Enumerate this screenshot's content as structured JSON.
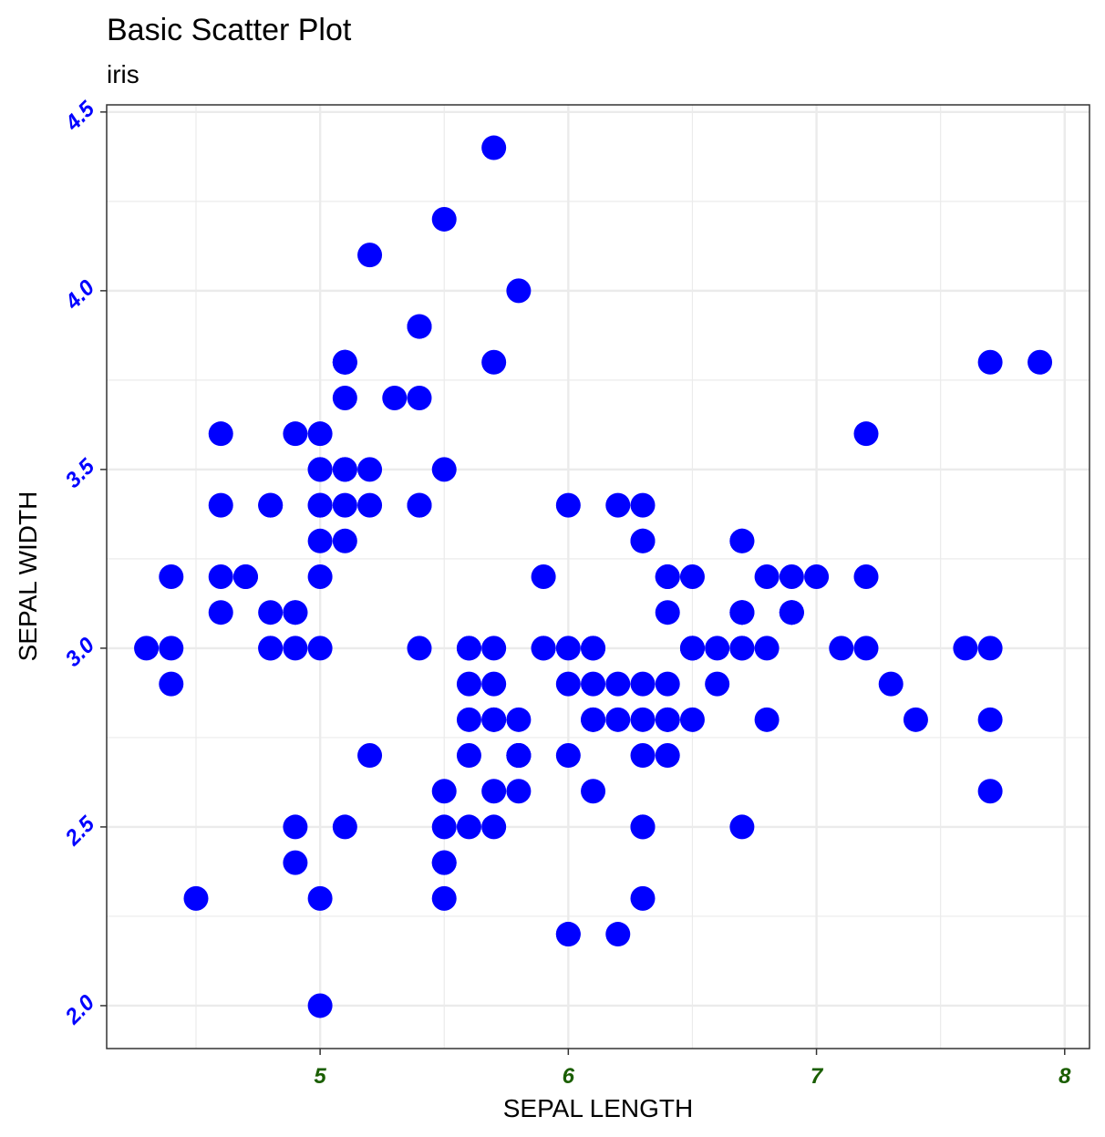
{
  "chart_data": {
    "type": "scatter",
    "title": "Basic Scatter Plot",
    "subtitle": "iris",
    "xlabel": "SEPAL LENGTH",
    "ylabel": "SEPAL WIDTH",
    "xlim": [
      4.14,
      8.1
    ],
    "ylim": [
      1.88,
      4.52
    ],
    "x_ticks": [
      5,
      6,
      7,
      8
    ],
    "x_tick_labels": [
      "5",
      "6",
      "7",
      "8"
    ],
    "y_ticks": [
      2.0,
      2.5,
      3.0,
      3.5,
      4.0,
      4.5
    ],
    "y_tick_labels": [
      "2.0",
      "2.5",
      "3.0",
      "3.5",
      "4.0",
      "4.5"
    ],
    "grid": true,
    "colors": {
      "points": "#0000ff",
      "x_tick_text": "#1a5e00",
      "y_tick_text": "#0000ff",
      "grid": "#ebebeb",
      "panel_border": "#333333"
    },
    "points": [
      [
        5.1,
        3.5
      ],
      [
        4.9,
        3.0
      ],
      [
        4.7,
        3.2
      ],
      [
        4.6,
        3.1
      ],
      [
        5.0,
        3.6
      ],
      [
        5.4,
        3.9
      ],
      [
        4.6,
        3.4
      ],
      [
        5.0,
        3.4
      ],
      [
        4.4,
        2.9
      ],
      [
        4.9,
        3.1
      ],
      [
        5.4,
        3.7
      ],
      [
        4.8,
        3.4
      ],
      [
        4.8,
        3.0
      ],
      [
        4.3,
        3.0
      ],
      [
        5.8,
        4.0
      ],
      [
        5.7,
        4.4
      ],
      [
        5.4,
        3.9
      ],
      [
        5.1,
        3.5
      ],
      [
        5.7,
        3.8
      ],
      [
        5.1,
        3.8
      ],
      [
        5.4,
        3.4
      ],
      [
        5.1,
        3.7
      ],
      [
        4.6,
        3.6
      ],
      [
        5.1,
        3.3
      ],
      [
        4.8,
        3.4
      ],
      [
        5.0,
        3.0
      ],
      [
        5.0,
        3.4
      ],
      [
        5.2,
        3.5
      ],
      [
        5.2,
        3.4
      ],
      [
        4.7,
        3.2
      ],
      [
        4.8,
        3.1
      ],
      [
        5.4,
        3.4
      ],
      [
        5.2,
        4.1
      ],
      [
        5.5,
        4.2
      ],
      [
        4.9,
        3.1
      ],
      [
        5.0,
        3.2
      ],
      [
        5.5,
        3.5
      ],
      [
        4.9,
        3.6
      ],
      [
        4.4,
        3.0
      ],
      [
        5.1,
        3.4
      ],
      [
        5.0,
        3.5
      ],
      [
        4.5,
        2.3
      ],
      [
        4.4,
        3.2
      ],
      [
        5.0,
        3.5
      ],
      [
        5.1,
        3.8
      ],
      [
        4.8,
        3.0
      ],
      [
        5.1,
        3.8
      ],
      [
        4.6,
        3.2
      ],
      [
        5.3,
        3.7
      ],
      [
        5.0,
        3.3
      ],
      [
        7.0,
        3.2
      ],
      [
        6.4,
        3.2
      ],
      [
        6.9,
        3.1
      ],
      [
        5.5,
        2.3
      ],
      [
        6.5,
        2.8
      ],
      [
        5.7,
        2.8
      ],
      [
        6.3,
        3.3
      ],
      [
        4.9,
        2.4
      ],
      [
        6.6,
        2.9
      ],
      [
        5.2,
        2.7
      ],
      [
        5.0,
        2.0
      ],
      [
        5.9,
        3.0
      ],
      [
        6.0,
        2.2
      ],
      [
        6.1,
        2.9
      ],
      [
        5.6,
        2.9
      ],
      [
        6.7,
        3.1
      ],
      [
        5.6,
        3.0
      ],
      [
        5.8,
        2.7
      ],
      [
        6.2,
        2.2
      ],
      [
        5.6,
        2.5
      ],
      [
        5.9,
        3.2
      ],
      [
        6.1,
        2.8
      ],
      [
        6.3,
        2.5
      ],
      [
        6.1,
        2.8
      ],
      [
        6.4,
        2.9
      ],
      [
        6.6,
        3.0
      ],
      [
        6.8,
        2.8
      ],
      [
        6.7,
        3.0
      ],
      [
        6.0,
        2.9
      ],
      [
        5.7,
        2.6
      ],
      [
        5.5,
        2.4
      ],
      [
        5.5,
        2.4
      ],
      [
        5.8,
        2.7
      ],
      [
        6.0,
        2.7
      ],
      [
        5.4,
        3.0
      ],
      [
        6.0,
        3.4
      ],
      [
        6.7,
        3.1
      ],
      [
        6.3,
        2.3
      ],
      [
        5.6,
        3.0
      ],
      [
        5.5,
        2.5
      ],
      [
        5.5,
        2.6
      ],
      [
        6.1,
        3.0
      ],
      [
        5.8,
        2.6
      ],
      [
        5.0,
        2.3
      ],
      [
        5.6,
        2.7
      ],
      [
        5.7,
        3.0
      ],
      [
        5.7,
        2.9
      ],
      [
        6.2,
        2.9
      ],
      [
        5.1,
        2.5
      ],
      [
        5.7,
        2.8
      ],
      [
        6.3,
        3.3
      ],
      [
        5.8,
        2.7
      ],
      [
        7.1,
        3.0
      ],
      [
        6.3,
        2.9
      ],
      [
        6.5,
        3.0
      ],
      [
        7.6,
        3.0
      ],
      [
        4.9,
        2.5
      ],
      [
        7.3,
        2.9
      ],
      [
        6.7,
        2.5
      ],
      [
        7.2,
        3.6
      ],
      [
        6.5,
        3.2
      ],
      [
        6.4,
        2.7
      ],
      [
        6.8,
        3.0
      ],
      [
        5.7,
        2.5
      ],
      [
        5.8,
        2.8
      ],
      [
        6.4,
        3.2
      ],
      [
        6.5,
        3.0
      ],
      [
        7.7,
        3.8
      ],
      [
        7.7,
        2.6
      ],
      [
        6.0,
        2.2
      ],
      [
        6.9,
        3.2
      ],
      [
        5.6,
        2.8
      ],
      [
        7.7,
        2.8
      ],
      [
        6.3,
        2.7
      ],
      [
        6.7,
        3.3
      ],
      [
        7.2,
        3.2
      ],
      [
        6.2,
        2.8
      ],
      [
        6.1,
        3.0
      ],
      [
        6.4,
        2.8
      ],
      [
        7.2,
        3.0
      ],
      [
        7.4,
        2.8
      ],
      [
        7.9,
        3.8
      ],
      [
        6.4,
        2.8
      ],
      [
        6.3,
        2.8
      ],
      [
        6.1,
        2.6
      ],
      [
        7.7,
        3.0
      ],
      [
        6.3,
        3.4
      ],
      [
        6.4,
        3.1
      ],
      [
        6.0,
        3.0
      ],
      [
        6.9,
        3.1
      ],
      [
        6.7,
        3.1
      ],
      [
        6.9,
        3.1
      ],
      [
        5.8,
        2.7
      ],
      [
        6.8,
        3.2
      ],
      [
        6.7,
        3.3
      ],
      [
        6.7,
        3.0
      ],
      [
        6.3,
        2.5
      ],
      [
        6.5,
        3.0
      ],
      [
        6.2,
        3.4
      ],
      [
        5.9,
        3.0
      ]
    ]
  }
}
